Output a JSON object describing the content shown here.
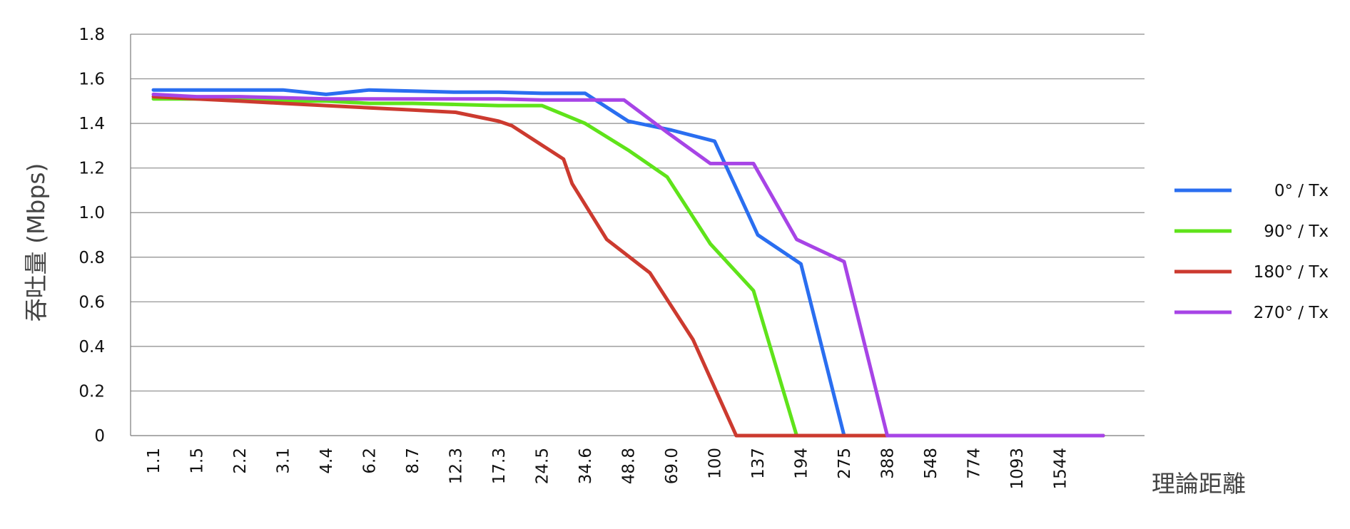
{
  "chart_data": {
    "type": "line",
    "title": "",
    "ylabel": "吞吐量 (Mbps)",
    "xlabel": "理論距離",
    "ylim": [
      0,
      1.8
    ],
    "yticks": [
      "0",
      "0.2",
      "0.4",
      "0.6",
      "0.8",
      "1.0",
      "1.2",
      "1.4",
      "1.6",
      "1.8"
    ],
    "grid": true,
    "legend_position": "right",
    "categories": [
      "1.1",
      "1.5",
      "2.2",
      "3.1",
      "4.4",
      "6.2",
      "8.7",
      "12.3",
      "17.3",
      "24.5",
      "34.6",
      "48.8",
      "69.0",
      "100",
      "137",
      "194",
      "275",
      "388",
      "548",
      "774",
      "1093",
      "1544"
    ],
    "series": [
      {
        "name": "0° / Tx",
        "color": "#2a6ef0",
        "points": [
          [
            0,
            1.55
          ],
          [
            1,
            1.55
          ],
          [
            2,
            1.55
          ],
          [
            3,
            1.55
          ],
          [
            4,
            1.53
          ],
          [
            5,
            1.55
          ],
          [
            6,
            1.545
          ],
          [
            7,
            1.54
          ],
          [
            8,
            1.54
          ],
          [
            9,
            1.535
          ],
          [
            10,
            1.535
          ],
          [
            11,
            1.41
          ],
          [
            12,
            1.37
          ],
          [
            13,
            1.32
          ],
          [
            14,
            0.9
          ],
          [
            15,
            0.77
          ],
          [
            16,
            0.0
          ],
          [
            17,
            0.0
          ],
          [
            18,
            0.0
          ],
          [
            19,
            0.0
          ],
          [
            20,
            0.0
          ],
          [
            21,
            0.0
          ],
          [
            22,
            0.0
          ]
        ]
      },
      {
        "name": "90° / Tx",
        "color": "#5fe31a",
        "points": [
          [
            0,
            1.51
          ],
          [
            1,
            1.51
          ],
          [
            2,
            1.51
          ],
          [
            3,
            1.5
          ],
          [
            4,
            1.5
          ],
          [
            5,
            1.49
          ],
          [
            6,
            1.49
          ],
          [
            7,
            1.485
          ],
          [
            8,
            1.48
          ],
          [
            9,
            1.48
          ],
          [
            10,
            1.4
          ],
          [
            11,
            1.28
          ],
          [
            11.9,
            1.16
          ],
          [
            12.9,
            0.86
          ],
          [
            13.9,
            0.65
          ],
          [
            14.9,
            0.0
          ],
          [
            16,
            0.0
          ],
          [
            17,
            0.0
          ],
          [
            18,
            0.0
          ],
          [
            19,
            0.0
          ],
          [
            20,
            0.0
          ],
          [
            21,
            0.0
          ],
          [
            22,
            0.0
          ]
        ]
      },
      {
        "name": "180° / Tx",
        "color": "#cc3a2f",
        "points": [
          [
            0,
            1.52
          ],
          [
            1,
            1.51
          ],
          [
            2,
            1.5
          ],
          [
            3,
            1.49
          ],
          [
            4,
            1.48
          ],
          [
            5,
            1.47
          ],
          [
            6,
            1.46
          ],
          [
            7,
            1.45
          ],
          [
            8,
            1.41
          ],
          [
            8.3,
            1.39
          ],
          [
            9.5,
            1.24
          ],
          [
            9.7,
            1.13
          ],
          [
            10.5,
            0.88
          ],
          [
            11.5,
            0.73
          ],
          [
            12.5,
            0.43
          ],
          [
            13.5,
            0.0
          ],
          [
            15,
            0.0
          ],
          [
            16,
            0.0
          ],
          [
            17,
            0.0
          ],
          [
            18,
            0.0
          ],
          [
            19,
            0.0
          ],
          [
            20,
            0.0
          ],
          [
            21,
            0.0
          ],
          [
            22,
            0.0
          ]
        ]
      },
      {
        "name": "270° / Tx",
        "color": "#a744e6",
        "points": [
          [
            0,
            1.53
          ],
          [
            1,
            1.52
          ],
          [
            2,
            1.52
          ],
          [
            3,
            1.515
          ],
          [
            4,
            1.51
          ],
          [
            5,
            1.51
          ],
          [
            6,
            1.51
          ],
          [
            7,
            1.51
          ],
          [
            8,
            1.51
          ],
          [
            9,
            1.505
          ],
          [
            10,
            1.505
          ],
          [
            10.9,
            1.505
          ],
          [
            11.9,
            1.36
          ],
          [
            12.9,
            1.22
          ],
          [
            13.9,
            1.22
          ],
          [
            14.9,
            0.88
          ],
          [
            16,
            0.78
          ],
          [
            17,
            0.0
          ],
          [
            18,
            0.0
          ],
          [
            19,
            0.0
          ],
          [
            20,
            0.0
          ],
          [
            21,
            0.0
          ],
          [
            22,
            0.0
          ]
        ]
      }
    ]
  }
}
